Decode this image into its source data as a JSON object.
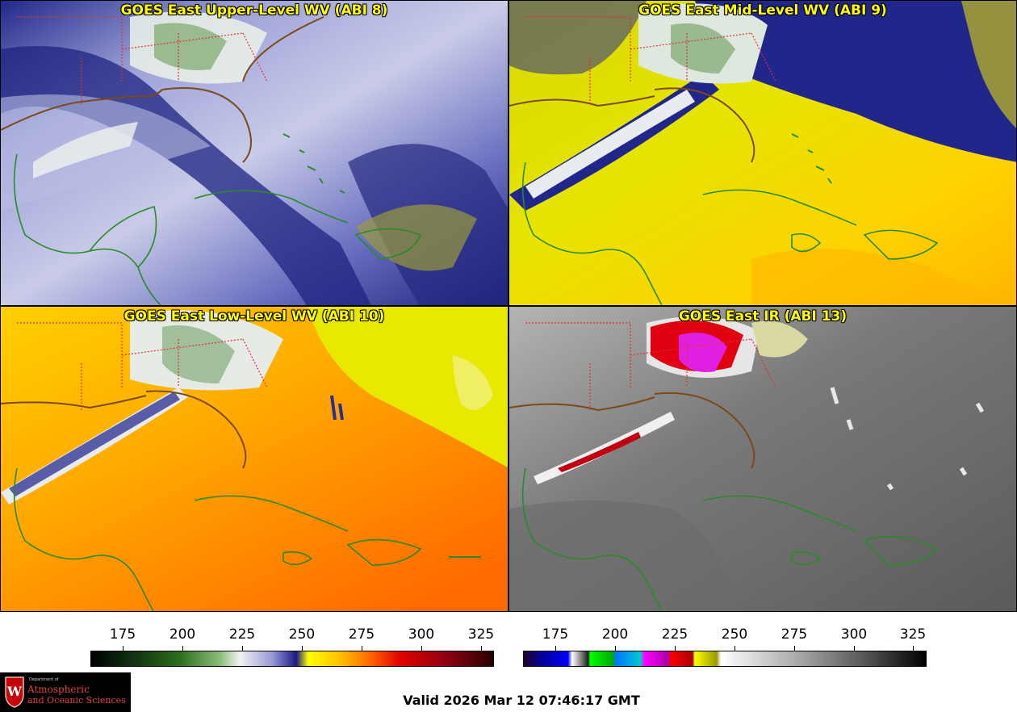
{
  "panels": [
    {
      "title": "GOES East Upper-Level WV (ABI 8)"
    },
    {
      "title": "GOES East Mid-Level WV (ABI 9)"
    },
    {
      "title": "GOES East Low-Level WV (ABI 10)"
    },
    {
      "title": "GOES East IR (ABI 13)"
    }
  ],
  "colorbars": [
    {
      "ticks": [
        "175",
        "200",
        "225",
        "250",
        "275",
        "300",
        "325"
      ]
    },
    {
      "ticks": [
        "175",
        "200",
        "225",
        "250",
        "275",
        "300",
        "325"
      ]
    }
  ],
  "valid_time": "Valid 2026 Mar 12 07:46:17 GMT",
  "logo": {
    "dept": "Department of",
    "line1": "Atmospheric",
    "line2": "and Oceanic Sciences"
  },
  "colors": {
    "coastline": "#2a8a2a",
    "state_borders": "#e03030",
    "title_text": "#ffff00"
  }
}
